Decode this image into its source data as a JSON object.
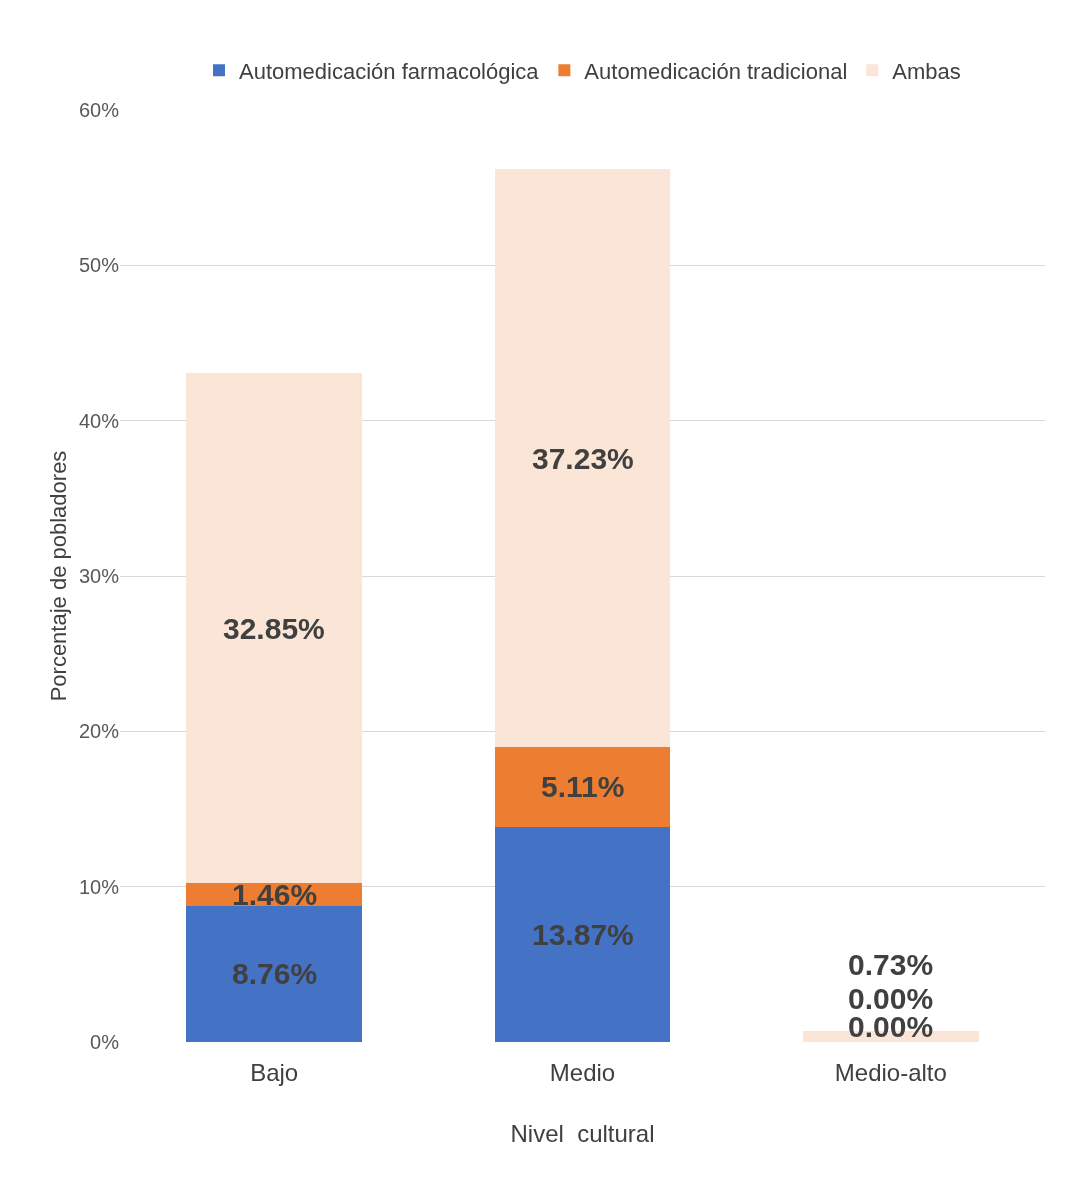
{
  "chart_data": {
    "type": "bar",
    "stacked": true,
    "categories": [
      "Bajo",
      "Medio",
      "Medio-alto"
    ],
    "series": [
      {
        "name": "Automedicación farmacológica",
        "color": "#4472c4",
        "values": [
          8.76,
          13.87,
          0
        ],
        "value_labels": [
          "8.76%",
          "13.87%",
          "0.00%"
        ]
      },
      {
        "name": "Automedicación tradicional",
        "color": "#ed7d31",
        "values": [
          1.46,
          5.11,
          0
        ],
        "value_labels": [
          "1.46%",
          "5.11%",
          "0.00%"
        ]
      },
      {
        "name": "Ambas",
        "color": "#fbe5d6",
        "values": [
          32.85,
          37.23,
          0.73
        ],
        "value_labels": [
          "32.85%",
          "37.23%",
          "0.73%"
        ]
      }
    ],
    "xlabel": "Nivel  cultural",
    "ylabel": "Porcentaje de pobladores",
    "ylim": [
      0,
      60
    ],
    "yticks": [
      {
        "value": 0,
        "label": "0%"
      },
      {
        "value": 10,
        "label": "10%"
      },
      {
        "value": 20,
        "label": "20%"
      },
      {
        "value": 30,
        "label": "30%"
      },
      {
        "value": 40,
        "label": "40%"
      },
      {
        "value": 50,
        "label": "50%"
      },
      {
        "value": 60,
        "label": "60%"
      }
    ],
    "grid": "y",
    "legend": "top"
  }
}
